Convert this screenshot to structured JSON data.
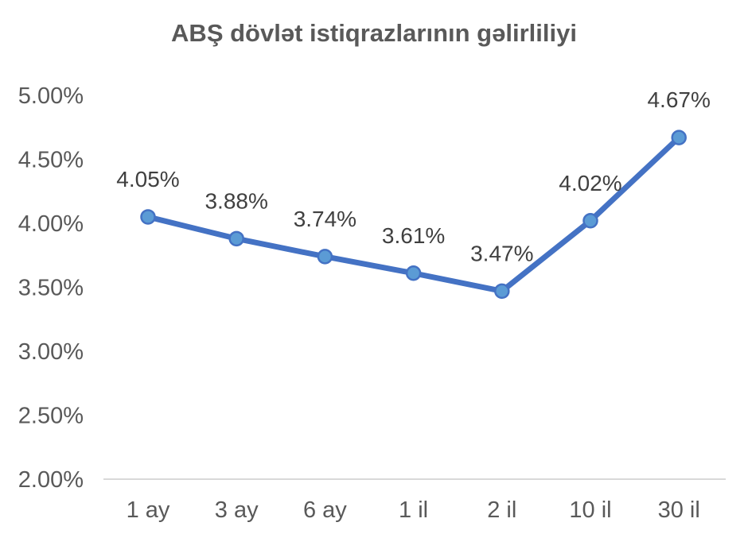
{
  "chart_data": {
    "type": "line",
    "title": "ABŞ dövlət istiqrazlarının gəlirliliyi",
    "categories": [
      "1 ay",
      "3 ay",
      "6 ay",
      "1 il",
      "2 il",
      "10 il",
      "30 il"
    ],
    "series": [
      {
        "values": [
          4.05,
          3.88,
          3.74,
          3.61,
          3.47,
          4.02,
          4.67
        ],
        "labels": [
          "4.05%",
          "3.88%",
          "3.74%",
          "3.61%",
          "3.47%",
          "4.02%",
          "4.67%"
        ],
        "color": "#4472C4",
        "marker_color": "#5B9BD5"
      }
    ],
    "y_ticks": [
      "2.00%",
      "2.50%",
      "3.00%",
      "3.50%",
      "4.00%",
      "4.50%",
      "5.00%"
    ],
    "y_tick_values": [
      2.0,
      2.5,
      3.0,
      3.5,
      4.0,
      4.5,
      5.0
    ],
    "ylim": [
      2.0,
      5.0
    ],
    "grid": false,
    "legend": "none"
  }
}
